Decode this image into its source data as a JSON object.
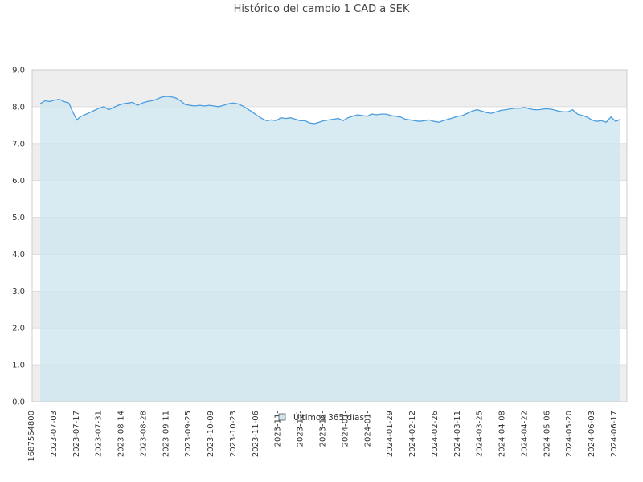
{
  "chart_data": {
    "type": "area",
    "title": "Histórico del cambio 1 CAD a SEK",
    "xlabel": "",
    "ylabel": "",
    "ylim": [
      0,
      9
    ],
    "y_ticks": [
      "0.0",
      "1.0",
      "2.0",
      "3.0",
      "4.0",
      "5.0",
      "6.0",
      "7.0",
      "8.0",
      "9.0"
    ],
    "x_tick_labels": [
      "1687564800",
      "2023-07-03",
      "2023-07-17",
      "2023-07-31",
      "2023-08-14",
      "2023-08-28",
      "2023-09-11",
      "2023-09-25",
      "2023-10-09",
      "2023-10-23",
      "2023-11-06",
      "2023-11-",
      "2023-12-",
      "2023-12-",
      "2024-01-",
      "2024-01-",
      "2024-01-29",
      "2024-02-12",
      "2024-02-26",
      "2024-03-11",
      "2024-03-25",
      "2024-04-08",
      "2024-04-22",
      "2024-05-06",
      "2024-05-20",
      "2024-06-03",
      "2024-06-17"
    ],
    "x_range": [
      "2023-06-24",
      "2024-06-23"
    ],
    "grid": "horizontal alternating bands",
    "legend_position": "bottom-center",
    "colors": {
      "line": "#4a9de0",
      "area": "#cfe6ef",
      "band_shaded": "#eeeeee",
      "band_plain": "#ffffff",
      "grid": "#dddddd"
    },
    "series": [
      {
        "name": "Últimos 365 días",
        "x": [
          "2023-06-24",
          "2023-06-27",
          "2023-06-30",
          "2023-07-03",
          "2023-07-06",
          "2023-07-09",
          "2023-07-12",
          "2023-07-14",
          "2023-07-17",
          "2023-07-19",
          "2023-07-22",
          "2023-07-25",
          "2023-07-28",
          "2023-07-31",
          "2023-08-03",
          "2023-08-06",
          "2023-08-09",
          "2023-08-12",
          "2023-08-15",
          "2023-08-18",
          "2023-08-21",
          "2023-08-24",
          "2023-08-27",
          "2023-08-30",
          "2023-09-02",
          "2023-09-05",
          "2023-09-08",
          "2023-09-11",
          "2023-09-14",
          "2023-09-17",
          "2023-09-20",
          "2023-09-23",
          "2023-09-26",
          "2023-09-29",
          "2023-10-02",
          "2023-10-05",
          "2023-10-08",
          "2023-10-11",
          "2023-10-14",
          "2023-10-17",
          "2023-10-20",
          "2023-10-23",
          "2023-10-26",
          "2023-10-29",
          "2023-11-01",
          "2023-11-04",
          "2023-11-07",
          "2023-11-10",
          "2023-11-13",
          "2023-11-16",
          "2023-11-19",
          "2023-11-22",
          "2023-11-25",
          "2023-11-28",
          "2023-12-01",
          "2023-12-04",
          "2023-12-07",
          "2023-12-10",
          "2023-12-13",
          "2023-12-16",
          "2023-12-19",
          "2023-12-22",
          "2023-12-25",
          "2023-12-28",
          "2023-12-31",
          "2024-01-03",
          "2024-01-06",
          "2024-01-09",
          "2024-01-12",
          "2024-01-15",
          "2024-01-18",
          "2024-01-21",
          "2024-01-24",
          "2024-01-27",
          "2024-01-30",
          "2024-02-02",
          "2024-02-05",
          "2024-02-08",
          "2024-02-11",
          "2024-02-14",
          "2024-02-17",
          "2024-02-20",
          "2024-02-23",
          "2024-02-26",
          "2024-02-29",
          "2024-03-03",
          "2024-03-06",
          "2024-03-09",
          "2024-03-12",
          "2024-03-15",
          "2024-03-18",
          "2024-03-21",
          "2024-03-24",
          "2024-03-27",
          "2024-03-30",
          "2024-04-02",
          "2024-04-05",
          "2024-04-08",
          "2024-04-11",
          "2024-04-14",
          "2024-04-17",
          "2024-04-20",
          "2024-04-23",
          "2024-04-26",
          "2024-04-29",
          "2024-05-02",
          "2024-05-05",
          "2024-05-08",
          "2024-05-11",
          "2024-05-14",
          "2024-05-17",
          "2024-05-20",
          "2024-05-23",
          "2024-05-26",
          "2024-05-29",
          "2024-06-01",
          "2024-06-04",
          "2024-06-07",
          "2024-06-10",
          "2024-06-13",
          "2024-06-16",
          "2024-06-19",
          "2024-06-22"
        ],
        "values": [
          8.08,
          8.16,
          8.14,
          8.18,
          8.2,
          8.14,
          8.1,
          7.9,
          7.64,
          7.72,
          7.78,
          7.84,
          7.9,
          7.96,
          8.0,
          7.92,
          7.98,
          8.04,
          8.08,
          8.1,
          8.12,
          8.04,
          8.1,
          8.14,
          8.16,
          8.2,
          8.26,
          8.28,
          8.27,
          8.24,
          8.16,
          8.06,
          8.04,
          8.02,
          8.04,
          8.02,
          8.04,
          8.02,
          8.0,
          8.04,
          8.08,
          8.1,
          8.08,
          8.02,
          7.94,
          7.86,
          7.76,
          7.68,
          7.62,
          7.64,
          7.62,
          7.7,
          7.68,
          7.7,
          7.66,
          7.62,
          7.62,
          7.56,
          7.54,
          7.58,
          7.62,
          7.64,
          7.66,
          7.68,
          7.62,
          7.7,
          7.74,
          7.78,
          7.76,
          7.74,
          7.8,
          7.78,
          7.8,
          7.8,
          7.76,
          7.74,
          7.72,
          7.66,
          7.64,
          7.62,
          7.6,
          7.62,
          7.64,
          7.6,
          7.58,
          7.62,
          7.66,
          7.7,
          7.74,
          7.76,
          7.82,
          7.88,
          7.92,
          7.88,
          7.84,
          7.82,
          7.86,
          7.9,
          7.92,
          7.94,
          7.96,
          7.96,
          7.98,
          7.94,
          7.92,
          7.92,
          7.94,
          7.94,
          7.92,
          7.88,
          7.86,
          7.86,
          7.92,
          7.8,
          7.76,
          7.72,
          7.64,
          7.6,
          7.62,
          7.58,
          7.72,
          7.6,
          7.66
        ]
      }
    ]
  }
}
